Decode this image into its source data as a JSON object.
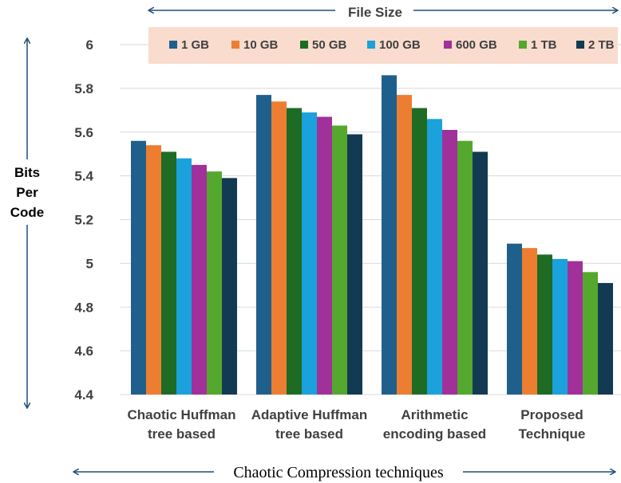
{
  "chart_data": {
    "type": "bar",
    "top_label": "File Size",
    "ylabel": [
      "Bits",
      "Per",
      "Code"
    ],
    "xlabel": "Chaotic Compression techniques",
    "ylim": [
      4.4,
      6
    ],
    "yticks": [
      "4.4",
      "4.6",
      "4.8",
      "5",
      "5.2",
      "5.4",
      "5.6",
      "5.8",
      "6"
    ],
    "grid": true,
    "legend_position": "top",
    "categories": [
      [
        "Chaotic Huffman",
        "tree based"
      ],
      [
        "Adaptive Huffman",
        "tree based"
      ],
      [
        "Arithmetic",
        "encoding based"
      ],
      [
        "Proposed",
        "Technique"
      ]
    ],
    "series": [
      {
        "name": "1 GB",
        "color": "#1f5f8b",
        "values": [
          5.56,
          5.77,
          5.86,
          5.09
        ]
      },
      {
        "name": "10 GB",
        "color": "#ed7d31",
        "values": [
          5.54,
          5.74,
          5.77,
          5.07
        ]
      },
      {
        "name": "50 GB",
        "color": "#1e6b24",
        "values": [
          5.51,
          5.71,
          5.71,
          5.04
        ]
      },
      {
        "name": "100 GB",
        "color": "#1ba1dc",
        "values": [
          5.48,
          5.69,
          5.66,
          5.02
        ]
      },
      {
        "name": "600 GB",
        "color": "#a1309b",
        "values": [
          5.45,
          5.67,
          5.61,
          5.01
        ]
      },
      {
        "name": "1 TB",
        "color": "#54a82e",
        "values": [
          5.42,
          5.63,
          5.56,
          4.96
        ]
      },
      {
        "name": "2 TB",
        "color": "#123a52",
        "values": [
          5.39,
          5.59,
          5.51,
          4.91
        ]
      }
    ],
    "colors": {
      "legend_bg": "#f9dccd",
      "arrow": "#1f4e79",
      "grid": "#d9d9d9"
    }
  }
}
